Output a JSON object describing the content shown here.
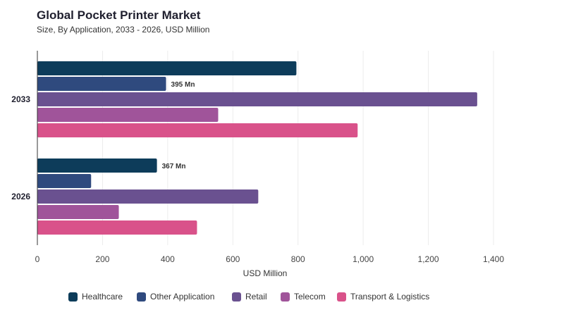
{
  "chart_data": {
    "type": "bar",
    "orientation": "horizontal",
    "title": "Global Pocket Printer Market",
    "subtitle": "Size, By Application, 2033 - 2026, USD Million",
    "categories": [
      "2033",
      "2026"
    ],
    "xlabel": "USD Million",
    "ylabel": "",
    "xlim": [
      0,
      1400
    ],
    "xticks": [
      "0",
      "200",
      "400",
      "600",
      "800",
      "1,000",
      "1,200",
      "1,400"
    ],
    "grid": true,
    "legend_position": "bottom",
    "series": [
      {
        "name": "Healthcare",
        "color": "#0d3c5a",
        "values": [
          795,
          367
        ]
      },
      {
        "name": "Other Application",
        "color": "#2f4a7e",
        "values": [
          395,
          165
        ]
      },
      {
        "name": "Retail",
        "color": "#6a5190",
        "values": [
          1350,
          678
        ]
      },
      {
        "name": "Telecom",
        "color": "#a0549a",
        "values": [
          555,
          250
        ]
      },
      {
        "name": "Transport & Logistics",
        "color": "#d9528a",
        "values": [
          983,
          490
        ]
      }
    ],
    "data_labels": [
      {
        "category": "2033",
        "series": "Other Application",
        "text": "395 Mn"
      },
      {
        "category": "2026",
        "series": "Healthcare",
        "text": "367 Mn"
      }
    ]
  }
}
